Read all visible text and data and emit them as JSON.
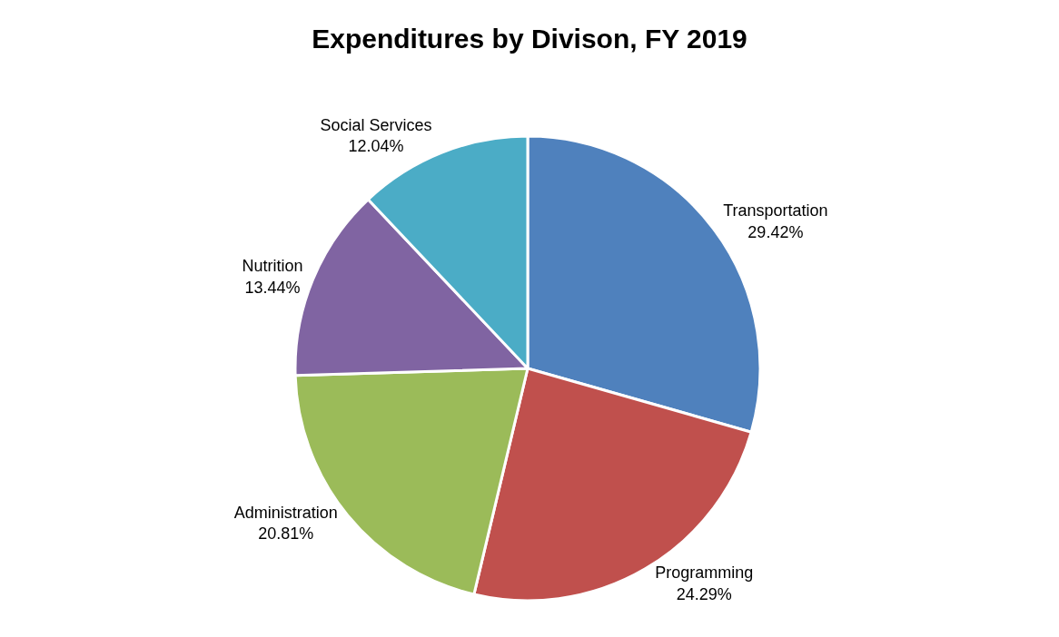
{
  "chart_data": {
    "type": "pie",
    "title": "Expenditures by Divison, FY 2019",
    "categories": [
      "Transportation",
      "Programming",
      "Administration",
      "Nutrition",
      "Social Services"
    ],
    "values": [
      29.42,
      24.29,
      20.81,
      13.44,
      12.04
    ],
    "colors": [
      "#4f81bd",
      "#c0504d",
      "#9bbb59",
      "#8064a2",
      "#4bacc6"
    ],
    "value_labels": [
      "29.42%",
      "24.29%",
      "20.81%",
      "13.44%",
      "12.04%"
    ],
    "legend": false
  }
}
